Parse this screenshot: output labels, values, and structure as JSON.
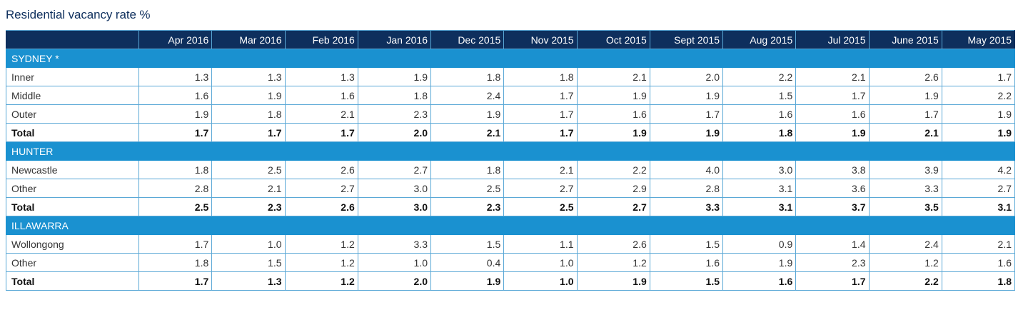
{
  "title": "Residential vacancy rate %",
  "chart_data": {
    "type": "table",
    "title": "Residential vacancy rate %",
    "columns": [
      "Apr 2016",
      "Mar 2016",
      "Feb 2016",
      "Jan 2016",
      "Dec 2015",
      "Nov 2015",
      "Oct 2015",
      "Sept 2015",
      "Aug 2015",
      "Jul 2015",
      "June 2015",
      "May 2015"
    ],
    "sections": [
      {
        "name": "SYDNEY *",
        "rows": [
          {
            "label": "Inner",
            "values": [
              "1.3",
              "1.3",
              "1.3",
              "1.9",
              "1.8",
              "1.8",
              "2.1",
              "2.0",
              "2.2",
              "2.1",
              "2.6",
              "1.7"
            ]
          },
          {
            "label": "Middle",
            "values": [
              "1.6",
              "1.9",
              "1.6",
              "1.8",
              "2.4",
              "1.7",
              "1.9",
              "1.9",
              "1.5",
              "1.7",
              "1.9",
              "2.2"
            ]
          },
          {
            "label": "Outer",
            "values": [
              "1.9",
              "1.8",
              "2.1",
              "2.3",
              "1.9",
              "1.7",
              "1.6",
              "1.7",
              "1.6",
              "1.6",
              "1.7",
              "1.9"
            ]
          },
          {
            "label": "Total",
            "total": true,
            "values": [
              "1.7",
              "1.7",
              "1.7",
              "2.0",
              "2.1",
              "1.7",
              "1.9",
              "1.9",
              "1.8",
              "1.9",
              "2.1",
              "1.9"
            ]
          }
        ]
      },
      {
        "name": "HUNTER",
        "rows": [
          {
            "label": "Newcastle",
            "values": [
              "1.8",
              "2.5",
              "2.6",
              "2.7",
              "1.8",
              "2.1",
              "2.2",
              "4.0",
              "3.0",
              "3.8",
              "3.9",
              "4.2"
            ]
          },
          {
            "label": "Other",
            "values": [
              "2.8",
              "2.1",
              "2.7",
              "3.0",
              "2.5",
              "2.7",
              "2.9",
              "2.8",
              "3.1",
              "3.6",
              "3.3",
              "2.7"
            ]
          },
          {
            "label": "Total",
            "total": true,
            "values": [
              "2.5",
              "2.3",
              "2.6",
              "3.0",
              "2.3",
              "2.5",
              "2.7",
              "3.3",
              "3.1",
              "3.7",
              "3.5",
              "3.1"
            ]
          }
        ]
      },
      {
        "name": "ILLAWARRA",
        "rows": [
          {
            "label": "Wollongong",
            "values": [
              "1.7",
              "1.0",
              "1.2",
              "3.3",
              "1.5",
              "1.1",
              "2.6",
              "1.5",
              "0.9",
              "1.4",
              "2.4",
              "2.1"
            ]
          },
          {
            "label": "Other",
            "values": [
              "1.8",
              "1.5",
              "1.2",
              "1.0",
              "0.4",
              "1.0",
              "1.2",
              "1.6",
              "1.9",
              "2.3",
              "1.2",
              "1.6"
            ]
          },
          {
            "label": "Total",
            "total": true,
            "values": [
              "1.7",
              "1.3",
              "1.2",
              "2.0",
              "1.9",
              "1.0",
              "1.9",
              "1.5",
              "1.6",
              "1.7",
              "2.2",
              "1.8"
            ]
          }
        ]
      }
    ]
  },
  "colors": {
    "title": "#0e2f5d",
    "header_bg": "#0e2f5d",
    "section_bg": "#1a91d0",
    "grid": "#5aa8d6"
  }
}
